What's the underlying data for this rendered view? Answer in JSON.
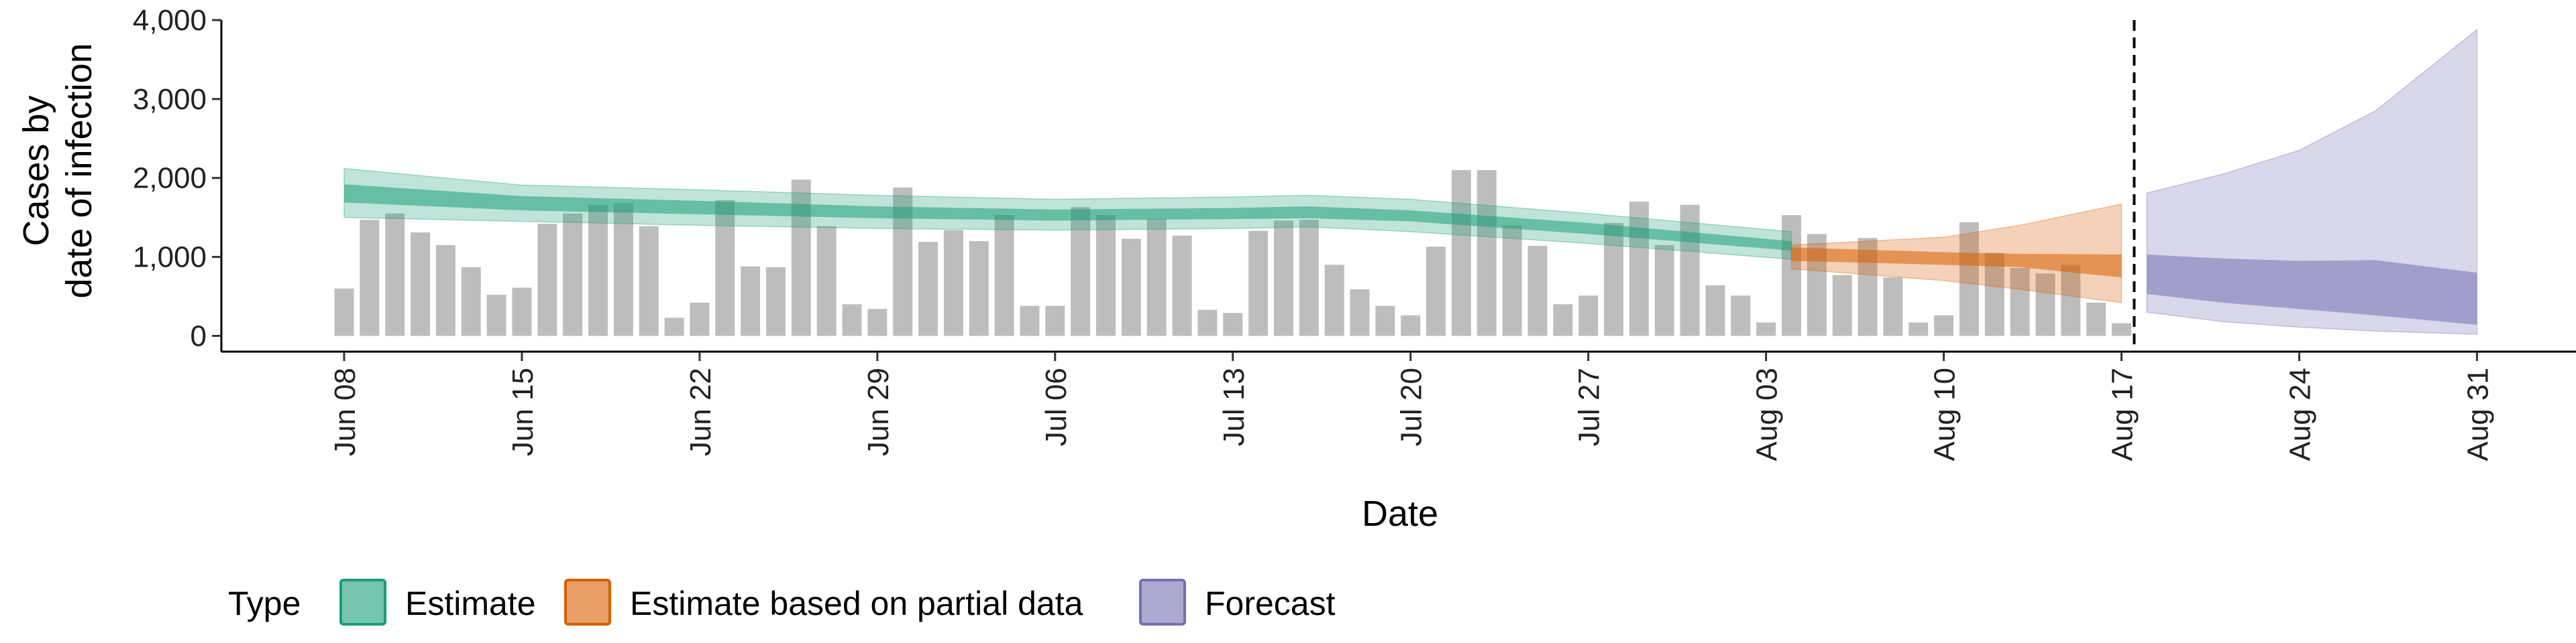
{
  "chart_data": {
    "type": "bar",
    "title": "",
    "xlabel": "Date",
    "ylabel_line1": "Cases by",
    "ylabel_line2": "date of infection",
    "start_date": "2020-06-08",
    "ylim": [
      -200,
      4000
    ],
    "yticks": [
      0,
      1000,
      2000,
      3000,
      4000
    ],
    "ytick_labels": [
      "0",
      "1,000",
      "2,000",
      "3,000",
      "4,000"
    ],
    "xtick_labels": [
      "Jun 08",
      "Jun 15",
      "Jun 22",
      "Jun 29",
      "Jul 06",
      "Jul 13",
      "Jul 20",
      "Jul 27",
      "Aug 03",
      "Aug 10",
      "Aug 17",
      "Aug 24",
      "Aug 31"
    ],
    "grid": false,
    "reported_cases": [
      600,
      1470,
      1550,
      1310,
      1150,
      870,
      520,
      610,
      1420,
      1550,
      1660,
      1680,
      1390,
      230,
      420,
      1720,
      880,
      870,
      1980,
      1390,
      400,
      340,
      1880,
      1190,
      1340,
      1200,
      1530,
      380,
      380,
      1630,
      1530,
      1230,
      1480,
      1270,
      330,
      290,
      1330,
      1460,
      1470,
      900,
      590,
      380,
      260,
      1130,
      2100,
      2100,
      1400,
      1140,
      400,
      510,
      1430,
      1700,
      1150,
      1660,
      640,
      510,
      170,
      1530,
      1290,
      770,
      1240,
      740,
      170,
      260,
      1440,
      1050,
      860,
      790,
      900,
      420,
      160
    ],
    "series": [
      {
        "name": "Estimate",
        "color": "#1b9e77",
        "day_start": 0,
        "day_end": 57,
        "knots": [
          {
            "d": 0,
            "lo90": 1500,
            "lo50": 1690,
            "median": 1800,
            "hi50": 1920,
            "hi90": 2120
          },
          {
            "d": 7,
            "lo90": 1450,
            "lo50": 1590,
            "median": 1680,
            "hi50": 1770,
            "hi90": 1910
          },
          {
            "d": 14,
            "lo90": 1400,
            "lo50": 1540,
            "median": 1630,
            "hi50": 1710,
            "hi90": 1850
          },
          {
            "d": 21,
            "lo90": 1360,
            "lo50": 1490,
            "median": 1560,
            "hi50": 1640,
            "hi90": 1780
          },
          {
            "d": 28,
            "lo90": 1340,
            "lo50": 1460,
            "median": 1530,
            "hi50": 1600,
            "hi90": 1730
          },
          {
            "d": 35,
            "lo90": 1360,
            "lo50": 1480,
            "median": 1550,
            "hi50": 1620,
            "hi90": 1760
          },
          {
            "d": 38,
            "lo90": 1380,
            "lo50": 1490,
            "median": 1560,
            "hi50": 1640,
            "hi90": 1780
          },
          {
            "d": 42,
            "lo90": 1320,
            "lo50": 1450,
            "median": 1510,
            "hi50": 1590,
            "hi90": 1730
          },
          {
            "d": 49,
            "lo90": 1170,
            "lo50": 1290,
            "median": 1360,
            "hi50": 1430,
            "hi90": 1550
          },
          {
            "d": 57,
            "lo90": 970,
            "lo50": 1080,
            "median": 1140,
            "hi50": 1200,
            "hi90": 1320
          }
        ]
      },
      {
        "name": "Estimate based on partial data",
        "color": "#d95f02",
        "day_start": 57,
        "day_end": 70,
        "knots": [
          {
            "d": 57,
            "lo90": 850,
            "lo50": 950,
            "median": 1020,
            "hi50": 1120,
            "hi90": 1150
          },
          {
            "d": 63,
            "lo90": 700,
            "lo50": 900,
            "median": 980,
            "hi50": 1060,
            "hi90": 1250
          },
          {
            "d": 66,
            "lo90": 590,
            "lo50": 870,
            "median": 960,
            "hi50": 1040,
            "hi90": 1400
          },
          {
            "d": 70,
            "lo90": 420,
            "lo50": 740,
            "median": 890,
            "hi50": 1030,
            "hi90": 1670
          }
        ]
      },
      {
        "name": "Forecast",
        "color": "#7570b3",
        "day_start": 71,
        "day_end": 84,
        "knots": [
          {
            "d": 71,
            "lo90": 300,
            "lo50": 530,
            "median": 780,
            "hi50": 1030,
            "hi90": 1810
          },
          {
            "d": 74,
            "lo90": 180,
            "lo50": 420,
            "median": 700,
            "hi50": 980,
            "hi90": 2050
          },
          {
            "d": 77,
            "lo90": 110,
            "lo50": 340,
            "median": 640,
            "hi50": 950,
            "hi90": 2350
          },
          {
            "d": 80,
            "lo90": 60,
            "lo50": 260,
            "median": 600,
            "hi50": 960,
            "hi90": 2850
          },
          {
            "d": 84,
            "lo90": 20,
            "lo50": 140,
            "median": 470,
            "hi50": 800,
            "hi90": 3880
          }
        ]
      }
    ],
    "forecast_line_day": 70.5,
    "bar_color": "#bdbdbd",
    "legend": {
      "position": "bottom",
      "title": "Type",
      "items": [
        {
          "label": "Estimate",
          "color": "#1b9e77"
        },
        {
          "label": "Estimate based on partial data",
          "color": "#d95f02"
        },
        {
          "label": "Forecast",
          "color": "#7570b3"
        }
      ]
    }
  }
}
